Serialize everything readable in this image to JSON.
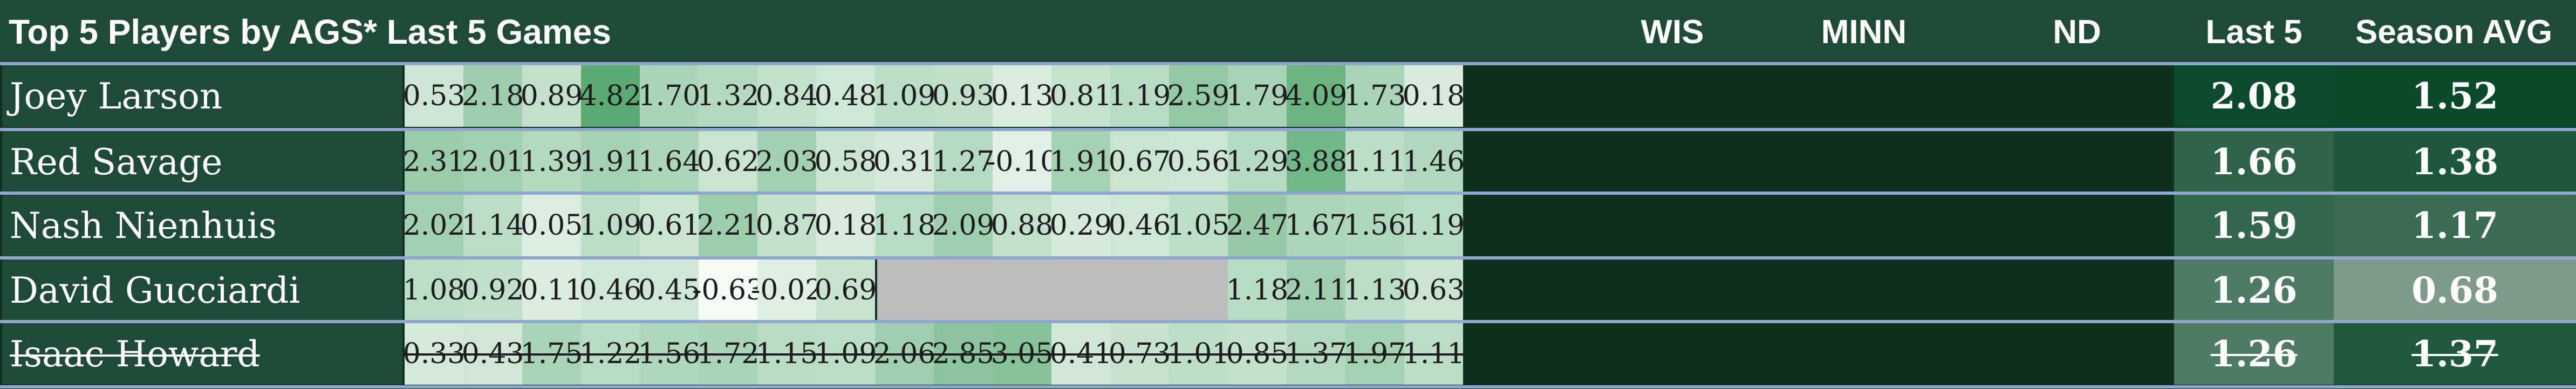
{
  "title": "Top 5 Players by AGS* Last 5 Games",
  "opponent_headers": [
    "WIS",
    "MINN",
    "ND"
  ],
  "summary_headers": [
    "Last 5",
    "Season AVG"
  ],
  "players": [
    {
      "name": "Joey Larson",
      "scores": [
        "0.53",
        "2.18",
        "0.89",
        "4.82",
        "1.70",
        "1.32",
        "0.84",
        "0.48",
        "1.09",
        "0.93",
        "0.13",
        "0.81",
        "1.19",
        "2.59",
        "1.79",
        "4.09",
        "1.73",
        "0.18"
      ],
      "last5": "2.08",
      "season_avg": "1.52",
      "struck": false
    },
    {
      "name": "Red Savage",
      "scores": [
        "2.31",
        "2.01",
        "1.39",
        "1.91",
        "1.64",
        "0.62",
        "2.03",
        "0.58",
        "0.31",
        "1.27",
        "-0.10",
        "1.91",
        "0.67",
        "0.56",
        "1.29",
        "3.88",
        "1.11",
        "1.46"
      ],
      "last5": "1.66",
      "season_avg": "1.38",
      "struck": false
    },
    {
      "name": "Nash Nienhuis",
      "scores": [
        "2.02",
        "1.14",
        "0.05",
        "1.09",
        "0.61",
        "2.21",
        "0.87",
        "0.18",
        "1.18",
        "2.09",
        "0.88",
        "0.29",
        "0.46",
        "1.05",
        "2.47",
        "1.67",
        "1.56",
        "1.19"
      ],
      "last5": "1.59",
      "season_avg": "1.17",
      "struck": false
    },
    {
      "name": "David Gucciardi",
      "scores": [
        "1.08",
        "0.92",
        "0.11",
        "0.46",
        "0.45",
        "-0.63",
        "-0.02",
        "0.69",
        null,
        null,
        null,
        null,
        null,
        null,
        "1.18",
        "2.11",
        "1.13",
        "0.63"
      ],
      "last5": "1.26",
      "season_avg": "0.68",
      "struck": false
    },
    {
      "name": "Isaac Howard",
      "scores": [
        "0.33",
        "0.43",
        "1.75",
        "1.22",
        "1.56",
        "1.72",
        "1.15",
        "1.09",
        "2.06",
        "2.85",
        "3.05",
        "0.41",
        "0.73",
        "1.01",
        "0.85",
        "1.37",
        "1.97",
        "1.11"
      ],
      "last5": "1.26",
      "season_avg": "1.37",
      "struck": true
    }
  ],
  "colors": {
    "header_bg": "#1f4a37",
    "name_bg": "#1f4a3a",
    "row_separator": "#8fa6cf",
    "missing_cell": "#bdbdbd",
    "scale_low": "#f7fbf8",
    "scale_high": "#5aac74"
  }
}
